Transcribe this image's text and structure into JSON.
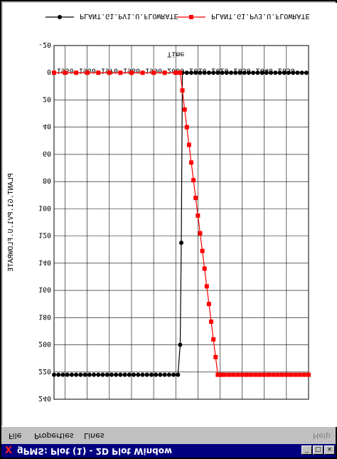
{
  "window": {
    "title": "gPMS: Plot (1) - 2D Plot Window",
    "close_glyph": "X",
    "minimize_glyph": "_",
    "maximize_glyph": "□",
    "close_button_glyph": "×"
  },
  "menu": {
    "file": "File",
    "properties": "Properties",
    "lines": "Lines",
    "help": "Help"
  },
  "chart_data": {
    "type": "line",
    "xlabel": "Time",
    "ylabel": "PLANT.G1.PV1.U.FLOWRATE",
    "xlim": [
      1945,
      2060
    ],
    "ylim": [
      -20,
      240
    ],
    "x_ticks": [
      1950,
      1960,
      1970,
      1980,
      1990,
      2000,
      2010,
      2020,
      2030,
      2040,
      2050
    ],
    "y_ticks": [
      -20,
      0,
      20,
      40,
      60,
      80,
      100,
      120,
      140,
      160,
      180,
      200,
      220,
      240
    ],
    "grid": true,
    "legend_placement": "top",
    "series": [
      {
        "name": "PLANT.G1.PV1.U.FLOWRATE",
        "color": "#000000",
        "marker": "circle",
        "x": [
          1945,
          1947,
          1949,
          1951,
          1953,
          1955,
          1957,
          1959,
          1961,
          1963,
          1965,
          1967,
          1969,
          1971,
          1973,
          1975,
          1977,
          1979,
          1981,
          1983,
          1985,
          1987,
          1989,
          1991,
          1993,
          1995,
          1997,
          1999,
          2001,
          2002,
          2002.5,
          2003,
          2005,
          2007,
          2009,
          2011,
          2013,
          2015,
          2017,
          2019,
          2021,
          2023,
          2025,
          2027,
          2029,
          2031,
          2033,
          2035,
          2037,
          2039,
          2041,
          2043,
          2045,
          2047,
          2049,
          2051,
          2053,
          2055,
          2057,
          2059
        ],
        "y": [
          222,
          222,
          222,
          222,
          222,
          222,
          222,
          222,
          222,
          222,
          222,
          222,
          222,
          222,
          222,
          222,
          222,
          222,
          222,
          222,
          222,
          222,
          222,
          222,
          222,
          222,
          222,
          222,
          222,
          200,
          125,
          0,
          0,
          0,
          0,
          0,
          0,
          0,
          0,
          0,
          0,
          0,
          0,
          0,
          0,
          0,
          0,
          0,
          0,
          0,
          0,
          0,
          0,
          0,
          0,
          0,
          0,
          0,
          0,
          0
        ]
      },
      {
        "name": "PLANT.G1.PV3.U.FLOWRATE",
        "color": "#ff0000",
        "marker": "square",
        "x": [
          1945,
          1950,
          1955,
          1960,
          1965,
          1970,
          1975,
          1980,
          1985,
          1990,
          1995,
          2000,
          2002,
          2003,
          2004,
          2005,
          2006,
          2007,
          2008,
          2009,
          2010,
          2011,
          2012,
          2013,
          2014,
          2015,
          2016,
          2017,
          2018,
          2019,
          2020,
          2021,
          2022,
          2024,
          2026,
          2028,
          2030,
          2032,
          2034,
          2036,
          2038,
          2040,
          2042,
          2044,
          2046,
          2048,
          2050,
          2052,
          2054,
          2056,
          2058,
          2060
        ],
        "y": [
          0,
          0,
          0,
          0,
          0,
          0,
          0,
          0,
          0,
          0,
          0,
          0,
          0,
          13,
          27,
          40,
          53,
          66,
          79,
          92,
          105,
          118,
          131,
          144,
          157,
          170,
          183,
          196,
          209,
          222,
          222,
          222,
          222,
          222,
          222,
          222,
          222,
          222,
          222,
          222,
          222,
          222,
          222,
          222,
          222,
          222,
          222,
          222,
          222,
          222,
          222,
          222
        ]
      }
    ]
  }
}
